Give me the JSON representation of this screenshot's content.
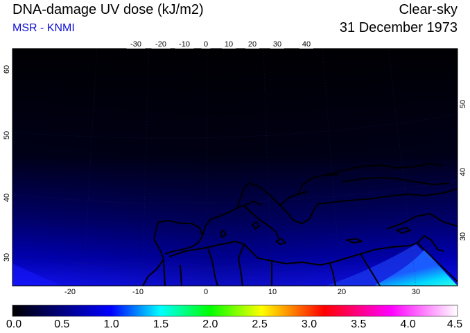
{
  "header": {
    "title": "DNA-damage UV dose (kJ/m2)",
    "credit": "MSR - KNMI",
    "sky_condition": "Clear-sky",
    "date": "31 December 1973"
  },
  "map": {
    "top_longitude_labels": [
      "-30",
      "-20",
      "-10",
      "0",
      "10",
      "20",
      "30",
      "40"
    ],
    "bottom_longitude_labels": [
      "-20",
      "-10",
      "0",
      "10",
      "20",
      "30"
    ],
    "left_latitude_labels": [
      "60",
      "50",
      "40",
      "30"
    ],
    "right_latitude_labels": [
      "50",
      "40",
      "30"
    ]
  },
  "colorbar": {
    "labels": [
      "0.0",
      "0.5",
      "1.0",
      "1.5",
      "2.0",
      "2.5",
      "3.0",
      "3.5",
      "4.0",
      "4.5"
    ],
    "colors": [
      "#000000",
      "#0000ff",
      "#00ffff",
      "#00ff00",
      "#ffff00",
      "#ff0000",
      "#ff00ff",
      "#ffffff"
    ]
  }
}
